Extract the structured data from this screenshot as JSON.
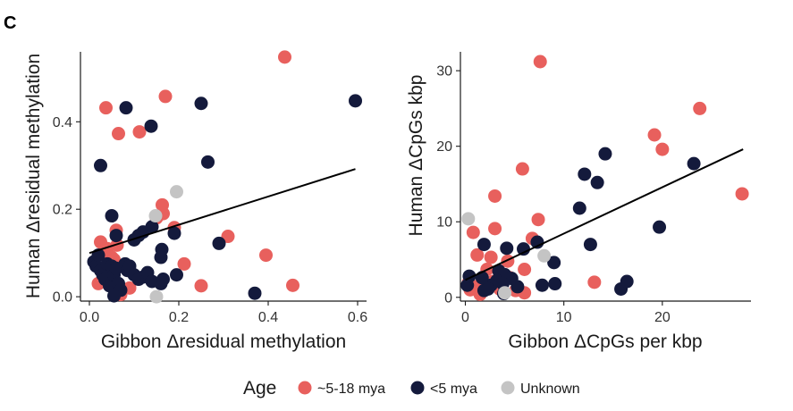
{
  "panel_label": "C",
  "colors": {
    "~5-18 mya": "#e8605d",
    "<5 mya": "#141a3c",
    "Unknown": "#c4c4c4"
  },
  "legend": {
    "title": "Age",
    "items": [
      {
        "label": "~5-18 mya",
        "color": "#e8605d"
      },
      {
        "label": "<5 mya",
        "color": "#141a3c"
      },
      {
        "label": "Unknown",
        "color": "#c4c4c4"
      }
    ]
  },
  "chart_data": [
    {
      "type": "scatter",
      "title": "",
      "xlabel": "Gibbon Δresidual methylation",
      "ylabel": "Human Δresidual methylation",
      "xlim": [
        -0.02,
        0.62
      ],
      "ylim": [
        -0.01,
        0.56
      ],
      "xticks": [
        0.0,
        0.2,
        0.4,
        0.6
      ],
      "xtick_labels": [
        "0.0",
        "0.2",
        "0.4",
        "0.6"
      ],
      "yticks": [
        0.0,
        0.2,
        0.4
      ],
      "ytick_labels": [
        "0.0",
        "0.2",
        "0.4"
      ],
      "grid": false,
      "trend_line": {
        "x": [
          0.0,
          0.595
        ],
        "y": [
          0.1,
          0.292
        ]
      },
      "series": [
        {
          "name": "~5-18 mya",
          "points": [
            [
              0.037,
              0.432
            ],
            [
              0.065,
              0.373
            ],
            [
              0.112,
              0.377
            ],
            [
              0.17,
              0.458
            ],
            [
              0.437,
              0.548
            ],
            [
              0.03,
              0.1
            ],
            [
              0.04,
              0.11
            ],
            [
              0.05,
              0.09
            ],
            [
              0.06,
              0.152
            ],
            [
              0.055,
              0.085
            ],
            [
              0.062,
              0.118
            ],
            [
              0.02,
              0.03
            ],
            [
              0.04,
              0.035
            ],
            [
              0.06,
              0.02
            ],
            [
              0.09,
              0.02
            ],
            [
              0.025,
              0.125
            ],
            [
              0.045,
              0.06
            ],
            [
              0.15,
              0.18
            ],
            [
              0.163,
              0.21
            ],
            [
              0.165,
              0.19
            ],
            [
              0.19,
              0.158
            ],
            [
              0.212,
              0.075
            ],
            [
              0.25,
              0.025
            ],
            [
              0.31,
              0.138
            ],
            [
              0.395,
              0.095
            ],
            [
              0.455,
              0.026
            ],
            [
              0.035,
              0.045
            ],
            [
              0.07,
              0.005
            ]
          ]
        },
        {
          "name": "<5 mya",
          "points": [
            [
              0.025,
              0.3
            ],
            [
              0.082,
              0.432
            ],
            [
              0.138,
              0.39
            ],
            [
              0.25,
              0.442
            ],
            [
              0.265,
              0.308
            ],
            [
              0.595,
              0.448
            ],
            [
              0.05,
              0.185
            ],
            [
              0.06,
              0.14
            ],
            [
              0.1,
              0.13
            ],
            [
              0.11,
              0.14
            ],
            [
              0.12,
              0.148
            ],
            [
              0.14,
              0.16
            ],
            [
              0.162,
              0.108
            ],
            [
              0.16,
              0.09
            ],
            [
              0.19,
              0.145
            ],
            [
              0.195,
              0.05
            ],
            [
              0.01,
              0.08
            ],
            [
              0.015,
              0.07
            ],
            [
              0.02,
              0.095
            ],
            [
              0.025,
              0.06
            ],
            [
              0.03,
              0.05
            ],
            [
              0.035,
              0.04
            ],
            [
              0.04,
              0.075
            ],
            [
              0.045,
              0.025
            ],
            [
              0.05,
              0.07
            ],
            [
              0.055,
              0.05
            ],
            [
              0.06,
              0.065
            ],
            [
              0.065,
              0.03
            ],
            [
              0.07,
              0.015
            ],
            [
              0.08,
              0.075
            ],
            [
              0.085,
              0.06
            ],
            [
              0.09,
              0.07
            ],
            [
              0.1,
              0.05
            ],
            [
              0.11,
              0.04
            ],
            [
              0.12,
              0.045
            ],
            [
              0.13,
              0.055
            ],
            [
              0.14,
              0.035
            ],
            [
              0.16,
              0.03
            ],
            [
              0.165,
              0.04
            ],
            [
              0.29,
              0.122
            ],
            [
              0.37,
              0.008
            ],
            [
              0.055,
              0.002
            ]
          ]
        },
        {
          "name": "Unknown",
          "points": [
            [
              0.195,
              0.24
            ],
            [
              0.148,
              0.185
            ],
            [
              0.15,
              0.0
            ]
          ]
        }
      ]
    },
    {
      "type": "scatter",
      "title": "",
      "xlabel": "Gibbon ΔCpGs per kbp",
      "ylabel": "Human ΔCpGs kbp",
      "xlim": [
        -0.5,
        29
      ],
      "ylim": [
        -0.5,
        32.5
      ],
      "xticks": [
        0,
        10,
        20
      ],
      "xtick_labels": [
        "0",
        "10",
        "20"
      ],
      "yticks": [
        0,
        10,
        20,
        30
      ],
      "ytick_labels": [
        "0",
        "10",
        "20",
        "30"
      ],
      "grid": false,
      "trend_line": {
        "x": [
          0.0,
          28.2
        ],
        "y": [
          2.3,
          19.6
        ]
      },
      "series": [
        {
          "name": "~5-18 mya",
          "points": [
            [
              7.6,
              31.2
            ],
            [
              23.8,
              25.0
            ],
            [
              19.2,
              21.5
            ],
            [
              20.0,
              19.6
            ],
            [
              28.1,
              13.7
            ],
            [
              5.8,
              17.0
            ],
            [
              3.0,
              13.4
            ],
            [
              7.4,
              10.3
            ],
            [
              0.8,
              8.6
            ],
            [
              3.0,
              9.1
            ],
            [
              6.8,
              7.8
            ],
            [
              1.2,
              5.6
            ],
            [
              2.6,
              5.3
            ],
            [
              4.3,
              4.8
            ],
            [
              6.0,
              3.7
            ],
            [
              0.3,
              1.9
            ],
            [
              1.0,
              1.4
            ],
            [
              1.5,
              0.4
            ],
            [
              2.8,
              2.1
            ],
            [
              13.1,
              2.0
            ],
            [
              6.0,
              0.6
            ],
            [
              3.5,
              1.1
            ],
            [
              4.5,
              2.6
            ],
            [
              0.5,
              1.0
            ],
            [
              2.2,
              3.7
            ],
            [
              5.1,
              0.9
            ]
          ]
        },
        {
          "name": "<5 mya",
          "points": [
            [
              23.2,
              17.7
            ],
            [
              14.2,
              19.0
            ],
            [
              12.1,
              16.3
            ],
            [
              13.4,
              15.2
            ],
            [
              11.6,
              11.8
            ],
            [
              19.7,
              9.3
            ],
            [
              12.7,
              7.0
            ],
            [
              7.3,
              7.3
            ],
            [
              5.9,
              6.4
            ],
            [
              4.2,
              6.5
            ],
            [
              1.9,
              7.0
            ],
            [
              9.0,
              4.6
            ],
            [
              7.8,
              1.6
            ],
            [
              9.1,
              1.8
            ],
            [
              15.8,
              1.1
            ],
            [
              16.4,
              2.1
            ],
            [
              3.4,
              3.5
            ],
            [
              4.0,
              3.0
            ],
            [
              4.7,
              2.5
            ],
            [
              3.2,
              2.2
            ],
            [
              2.6,
              1.6
            ],
            [
              3.8,
              1.8
            ],
            [
              1.7,
              2.6
            ],
            [
              1.9,
              0.9
            ],
            [
              0.2,
              1.6
            ],
            [
              0.4,
              2.8
            ],
            [
              5.3,
              1.4
            ],
            [
              3.9,
              0.5
            ],
            [
              2.3,
              1.1
            ]
          ]
        },
        {
          "name": "Unknown",
          "points": [
            [
              0.3,
              10.4
            ],
            [
              8.0,
              5.5
            ],
            [
              4.0,
              0.6
            ]
          ]
        }
      ]
    }
  ]
}
